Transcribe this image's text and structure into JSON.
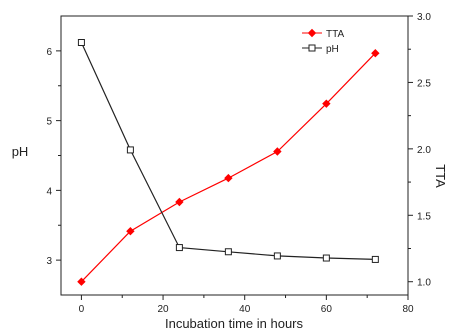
{
  "chart_data": {
    "type": "line",
    "xlabel": "Incubation time in hours",
    "ylabel_left": "pH",
    "ylabel_right": "TTA",
    "xlim": [
      -5,
      80
    ],
    "ylim_left": [
      2.5,
      6.5
    ],
    "ylim_right": [
      0.9,
      3.0
    ],
    "xticks": [
      0,
      20,
      40,
      60,
      80
    ],
    "yticks_left": [
      3,
      4,
      5,
      6
    ],
    "yticks_right": [
      1.0,
      1.5,
      2.0,
      2.5,
      3.0
    ],
    "grid": false,
    "legend_position": "top-right",
    "series": [
      {
        "name": "TTA",
        "axis": "right",
        "color": "#ff0000",
        "marker": "filled-diamond",
        "x": [
          0,
          12,
          24,
          36,
          48,
          60,
          72
        ],
        "values": [
          1.0,
          1.38,
          1.6,
          1.78,
          1.98,
          2.34,
          2.72
        ]
      },
      {
        "name": "pH",
        "axis": "left",
        "color": "#222222",
        "marker": "open-square",
        "x": [
          0,
          12,
          24,
          36,
          48,
          60,
          72
        ],
        "values": [
          6.12,
          4.58,
          3.18,
          3.12,
          3.06,
          3.03,
          3.01
        ]
      }
    ]
  }
}
